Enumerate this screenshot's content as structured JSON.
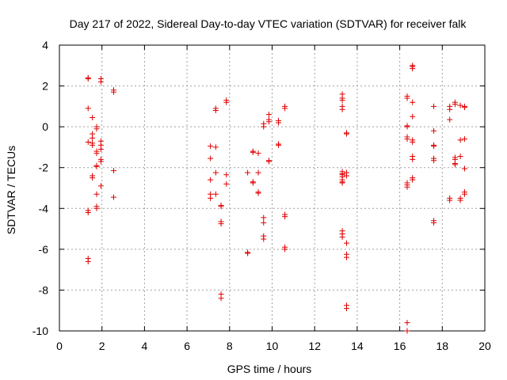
{
  "chart_data": {
    "type": "scatter",
    "title": "Day 217 of 2022, Sidereal Day-to-day VTEC variation (SDTVAR) for receiver falk",
    "xlabel": "GPS time / hours",
    "ylabel": "SDTVAR / TECUs",
    "xlim": [
      0,
      20
    ],
    "ylim": [
      -10,
      4
    ],
    "x_ticks": [
      "0",
      "2",
      "4",
      "6",
      "8",
      "10",
      "12",
      "14",
      "16",
      "18",
      "20"
    ],
    "y_ticks": [
      "-10",
      "-8",
      "-6",
      "-4",
      "-2",
      "0",
      "2",
      "4"
    ],
    "grid": true,
    "marker": "plus",
    "marker_color": "#e00000",
    "series": [
      {
        "name": "SDTVAR",
        "points": [
          [
            1.35,
            2.4
          ],
          [
            1.35,
            2.35
          ],
          [
            1.35,
            0.9
          ],
          [
            1.35,
            -0.75
          ],
          [
            1.35,
            -4.1
          ],
          [
            1.35,
            -4.2
          ],
          [
            1.35,
            -6.45
          ],
          [
            1.35,
            -6.6
          ],
          [
            1.55,
            0.45
          ],
          [
            1.55,
            -0.35
          ],
          [
            1.55,
            -0.55
          ],
          [
            1.55,
            -0.8
          ],
          [
            1.55,
            -0.9
          ],
          [
            1.55,
            -2.4
          ],
          [
            1.55,
            -2.5
          ],
          [
            1.75,
            0.0
          ],
          [
            1.75,
            -0.1
          ],
          [
            1.75,
            -1.2
          ],
          [
            1.75,
            -1.3
          ],
          [
            1.75,
            -1.9
          ],
          [
            1.75,
            -1.95
          ],
          [
            1.75,
            -3.3
          ],
          [
            1.75,
            -3.9
          ],
          [
            1.75,
            -4.0
          ],
          [
            1.95,
            2.35
          ],
          [
            1.95,
            2.2
          ],
          [
            1.95,
            -0.7
          ],
          [
            1.95,
            -0.9
          ],
          [
            1.95,
            -1.1
          ],
          [
            1.95,
            -1.6
          ],
          [
            1.95,
            -1.7
          ],
          [
            1.95,
            -2.9
          ],
          [
            2.55,
            1.8
          ],
          [
            2.55,
            1.7
          ],
          [
            2.55,
            -2.15
          ],
          [
            2.55,
            -3.45
          ],
          [
            7.1,
            -0.95
          ],
          [
            7.1,
            -1.55
          ],
          [
            7.1,
            -2.6
          ],
          [
            7.1,
            -3.3
          ],
          [
            7.1,
            -3.5
          ],
          [
            7.35,
            0.9
          ],
          [
            7.35,
            0.8
          ],
          [
            7.35,
            -1.0
          ],
          [
            7.35,
            -2.25
          ],
          [
            7.35,
            -3.3
          ],
          [
            7.6,
            -3.85
          ],
          [
            7.6,
            -3.9
          ],
          [
            7.6,
            -4.65
          ],
          [
            7.6,
            -4.75
          ],
          [
            7.6,
            -8.2
          ],
          [
            7.6,
            -8.4
          ],
          [
            7.85,
            1.3
          ],
          [
            7.85,
            1.2
          ],
          [
            7.85,
            -2.35
          ],
          [
            7.85,
            -2.8
          ],
          [
            8.85,
            -2.25
          ],
          [
            8.85,
            -6.15
          ],
          [
            8.85,
            -6.2
          ],
          [
            9.1,
            -1.2
          ],
          [
            9.1,
            -1.25
          ],
          [
            9.1,
            -2.7
          ],
          [
            9.1,
            -2.75
          ],
          [
            9.35,
            -1.3
          ],
          [
            9.35,
            -2.25
          ],
          [
            9.35,
            -3.2
          ],
          [
            9.35,
            -3.25
          ],
          [
            9.6,
            0.15
          ],
          [
            9.6,
            0.0
          ],
          [
            9.6,
            -4.45
          ],
          [
            9.6,
            -4.7
          ],
          [
            9.6,
            -5.35
          ],
          [
            9.6,
            -5.5
          ],
          [
            9.85,
            0.6
          ],
          [
            9.85,
            0.35
          ],
          [
            9.85,
            0.25
          ],
          [
            9.85,
            -1.65
          ],
          [
            9.85,
            -1.7
          ],
          [
            10.3,
            0.3
          ],
          [
            10.3,
            0.2
          ],
          [
            10.3,
            -0.85
          ],
          [
            10.3,
            -0.9
          ],
          [
            10.6,
            1.0
          ],
          [
            10.6,
            0.9
          ],
          [
            10.6,
            -4.3
          ],
          [
            10.6,
            -4.4
          ],
          [
            10.6,
            -5.9
          ],
          [
            10.6,
            -6.0
          ],
          [
            13.3,
            1.6
          ],
          [
            13.3,
            1.4
          ],
          [
            13.3,
            1.3
          ],
          [
            13.3,
            1.0
          ],
          [
            13.3,
            0.85
          ],
          [
            13.3,
            -2.2
          ],
          [
            13.3,
            -2.3
          ],
          [
            13.3,
            -2.35
          ],
          [
            13.3,
            -2.45
          ],
          [
            13.3,
            -2.6
          ],
          [
            13.3,
            -2.7
          ],
          [
            13.3,
            -2.75
          ],
          [
            13.3,
            -5.1
          ],
          [
            13.3,
            -5.25
          ],
          [
            13.3,
            -5.4
          ],
          [
            13.5,
            -0.3
          ],
          [
            13.5,
            -0.35
          ],
          [
            13.5,
            -2.25
          ],
          [
            13.5,
            -2.4
          ],
          [
            13.5,
            -5.7
          ],
          [
            13.5,
            -6.25
          ],
          [
            13.5,
            -6.4
          ],
          [
            13.5,
            -8.75
          ],
          [
            13.5,
            -8.9
          ],
          [
            16.35,
            1.5
          ],
          [
            16.35,
            1.4
          ],
          [
            16.35,
            0.05
          ],
          [
            16.35,
            0.0
          ],
          [
            16.35,
            -0.5
          ],
          [
            16.35,
            -0.6
          ],
          [
            16.35,
            -2.75
          ],
          [
            16.35,
            -2.85
          ],
          [
            16.35,
            -2.95
          ],
          [
            16.35,
            -9.6
          ],
          [
            16.35,
            -10.0
          ],
          [
            16.6,
            3.0
          ],
          [
            16.6,
            2.95
          ],
          [
            16.6,
            2.85
          ],
          [
            16.6,
            1.2
          ],
          [
            16.6,
            0.5
          ],
          [
            16.6,
            -0.65
          ],
          [
            16.6,
            -0.75
          ],
          [
            16.6,
            -1.45
          ],
          [
            16.6,
            -1.6
          ],
          [
            16.6,
            -2.5
          ],
          [
            16.6,
            -2.6
          ],
          [
            17.6,
            1.0
          ],
          [
            17.6,
            -0.2
          ],
          [
            17.6,
            -0.9
          ],
          [
            17.6,
            -0.95
          ],
          [
            17.6,
            -1.55
          ],
          [
            17.6,
            -1.65
          ],
          [
            17.6,
            -4.6
          ],
          [
            17.6,
            -4.7
          ],
          [
            18.35,
            1.0
          ],
          [
            18.35,
            0.85
          ],
          [
            18.35,
            0.35
          ],
          [
            18.35,
            -3.5
          ],
          [
            18.35,
            -3.6
          ],
          [
            18.6,
            1.2
          ],
          [
            18.6,
            1.1
          ],
          [
            18.6,
            -1.5
          ],
          [
            18.6,
            -1.6
          ],
          [
            18.6,
            -1.8
          ],
          [
            18.6,
            -1.85
          ],
          [
            18.85,
            1.05
          ],
          [
            18.85,
            -0.65
          ],
          [
            18.85,
            -1.45
          ],
          [
            18.85,
            -3.5
          ],
          [
            18.85,
            -3.6
          ],
          [
            19.05,
            1.0
          ],
          [
            19.05,
            0.95
          ],
          [
            19.05,
            -0.6
          ],
          [
            19.05,
            -2.05
          ],
          [
            19.05,
            -3.2
          ],
          [
            19.05,
            -3.3
          ]
        ]
      }
    ]
  }
}
